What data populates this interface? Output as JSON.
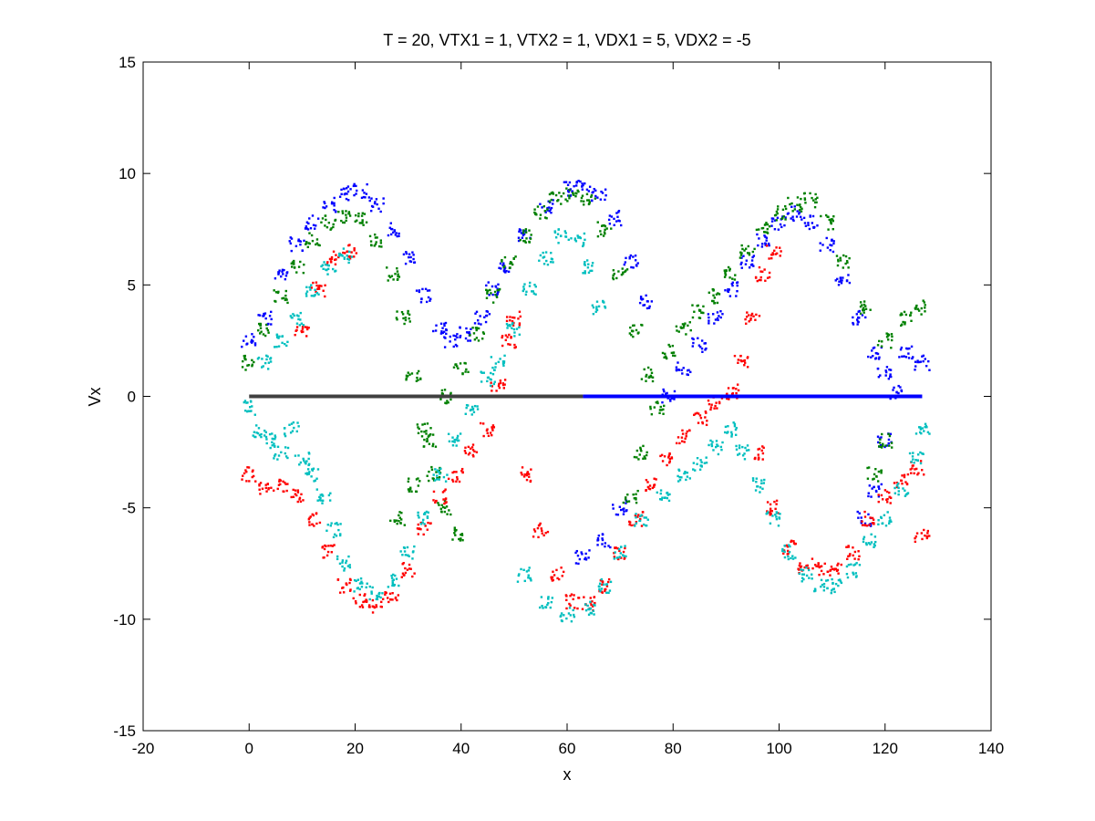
{
  "chart_data": {
    "type": "scatter",
    "title": "T = 20, VTX1 = 1, VTX2 = 1, VDX1 = 5, VDX2 = -5",
    "xlabel": "x",
    "ylabel": "Vx",
    "xlim": [
      -20,
      140
    ],
    "ylim": [
      -15,
      15
    ],
    "x_ticks": [
      "-20",
      "0",
      "20",
      "40",
      "60",
      "80",
      "100",
      "120",
      "140"
    ],
    "y_ticks": [
      "15",
      "10",
      "5",
      "0",
      "-5",
      "-10",
      "-15"
    ],
    "grid": false,
    "legend": "none",
    "series": [
      {
        "color": "#0000ff",
        "points": [
          [
            0,
            2.5
          ],
          [
            3,
            3.5
          ],
          [
            6,
            5.5
          ],
          [
            9,
            6.8
          ],
          [
            12,
            7.8
          ],
          [
            15,
            8.6
          ],
          [
            18,
            9.1
          ],
          [
            21,
            9.2
          ],
          [
            24,
            8.6
          ],
          [
            27,
            7.5
          ],
          [
            30,
            6.2
          ],
          [
            33,
            4.5
          ],
          [
            36,
            3.0
          ],
          [
            38,
            2.5
          ],
          [
            41,
            2.8
          ],
          [
            44,
            3.5
          ],
          [
            46,
            4.8
          ],
          [
            48,
            5.8
          ],
          [
            52,
            7.2
          ],
          [
            56,
            8.5
          ],
          [
            60,
            9.3
          ],
          [
            63,
            9.5
          ],
          [
            66,
            9.0
          ],
          [
            69,
            8.0
          ],
          [
            72,
            6.0
          ],
          [
            75,
            4.2
          ],
          [
            70,
            -5.0
          ],
          [
            67,
            -6.5
          ],
          [
            63,
            -7.2
          ],
          [
            79,
            0.0
          ],
          [
            82,
            1.2
          ],
          [
            85,
            2.3
          ],
          [
            88,
            3.5
          ],
          [
            91,
            4.8
          ],
          [
            94,
            6.0
          ],
          [
            97,
            7.0
          ],
          [
            100,
            7.8
          ],
          [
            103,
            8.2
          ],
          [
            106,
            7.8
          ],
          [
            109,
            6.8
          ],
          [
            112,
            5.2
          ],
          [
            115,
            3.5
          ],
          [
            118,
            2.0
          ],
          [
            120,
            1.0
          ],
          [
            122,
            0.2
          ],
          [
            124,
            2.0
          ],
          [
            127,
            1.5
          ],
          [
            120,
            -2.0
          ],
          [
            118,
            -4.2
          ],
          [
            116,
            -5.5
          ]
        ]
      },
      {
        "color": "#008000",
        "points": [
          [
            0,
            1.5
          ],
          [
            3,
            3.0
          ],
          [
            6,
            4.5
          ],
          [
            9,
            5.8
          ],
          [
            12,
            7.0
          ],
          [
            15,
            7.8
          ],
          [
            18,
            8.1
          ],
          [
            21,
            8.0
          ],
          [
            24,
            7.0
          ],
          [
            27,
            5.5
          ],
          [
            29,
            3.5
          ],
          [
            31,
            1.0
          ],
          [
            33,
            -1.5
          ],
          [
            35,
            -3.5
          ],
          [
            37,
            -5.0
          ],
          [
            39,
            -6.2
          ],
          [
            28,
            -5.5
          ],
          [
            31,
            -4.0
          ],
          [
            34,
            -2.0
          ],
          [
            37,
            0.0
          ],
          [
            40,
            1.2
          ],
          [
            43,
            2.8
          ],
          [
            46,
            4.5
          ],
          [
            49,
            6.0
          ],
          [
            52,
            7.2
          ],
          [
            55,
            8.3
          ],
          [
            58,
            8.9
          ],
          [
            61,
            9.0
          ],
          [
            64,
            8.8
          ],
          [
            67,
            7.5
          ],
          [
            70,
            5.5
          ],
          [
            73,
            3.0
          ],
          [
            75,
            1.0
          ],
          [
            77,
            -0.5
          ],
          [
            74,
            -2.5
          ],
          [
            72,
            -4.5
          ],
          [
            79,
            2.0
          ],
          [
            82,
            3.0
          ],
          [
            85,
            3.8
          ],
          [
            88,
            4.5
          ],
          [
            91,
            5.5
          ],
          [
            94,
            6.5
          ],
          [
            97,
            7.5
          ],
          [
            100,
            8.2
          ],
          [
            103,
            8.6
          ],
          [
            106,
            8.8
          ],
          [
            109,
            7.8
          ],
          [
            112,
            6.0
          ],
          [
            116,
            4.0
          ],
          [
            120,
            2.5
          ],
          [
            124,
            3.5
          ],
          [
            127,
            4.0
          ],
          [
            118,
            -3.5
          ],
          [
            120,
            -2.0
          ]
        ]
      },
      {
        "color": "#ff0000",
        "points": [
          [
            0,
            -3.5
          ],
          [
            3,
            -4.2
          ],
          [
            6,
            -4.0
          ],
          [
            9,
            -4.5
          ],
          [
            12,
            -5.5
          ],
          [
            15,
            -7.0
          ],
          [
            18,
            -8.5
          ],
          [
            21,
            -9.2
          ],
          [
            24,
            -9.4
          ],
          [
            27,
            -9.0
          ],
          [
            30,
            -7.8
          ],
          [
            33,
            -6.0
          ],
          [
            36,
            -4.5
          ],
          [
            39,
            -3.5
          ],
          [
            42,
            -2.5
          ],
          [
            45,
            -1.5
          ],
          [
            47,
            0.5
          ],
          [
            49,
            2.5
          ],
          [
            50,
            3.5
          ],
          [
            52,
            -3.5
          ],
          [
            55,
            -6.0
          ],
          [
            58,
            -8.0
          ],
          [
            61,
            -9.2
          ],
          [
            64,
            -9.3
          ],
          [
            67,
            -8.5
          ],
          [
            70,
            -7.0
          ],
          [
            73,
            -5.5
          ],
          [
            76,
            -4.0
          ],
          [
            79,
            -2.8
          ],
          [
            82,
            -1.8
          ],
          [
            85,
            -1.0
          ],
          [
            88,
            -0.3
          ],
          [
            91,
            0.2
          ],
          [
            93,
            1.5
          ],
          [
            95,
            3.5
          ],
          [
            97,
            5.5
          ],
          [
            99,
            6.5
          ],
          [
            96,
            -2.5
          ],
          [
            99,
            -5.0
          ],
          [
            102,
            -6.8
          ],
          [
            105,
            -7.6
          ],
          [
            108,
            -7.8
          ],
          [
            111,
            -7.8
          ],
          [
            114,
            -7.0
          ],
          [
            117,
            -5.5
          ],
          [
            120,
            -4.5
          ],
          [
            123,
            -3.8
          ],
          [
            126,
            -3.2
          ],
          [
            127,
            -6.2
          ],
          [
            10,
            3.0
          ],
          [
            13,
            4.8
          ],
          [
            16,
            6.2
          ],
          [
            19,
            6.5
          ]
        ]
      },
      {
        "color": "#00bfbf",
        "points": [
          [
            0,
            -0.5
          ],
          [
            2,
            -1.5
          ],
          [
            4,
            -2.0
          ],
          [
            6,
            -2.5
          ],
          [
            8,
            -1.5
          ],
          [
            10,
            -2.8
          ],
          [
            12,
            -3.5
          ],
          [
            14,
            -4.5
          ],
          [
            16,
            -6.0
          ],
          [
            18,
            -7.5
          ],
          [
            21,
            -8.5
          ],
          [
            24,
            -8.8
          ],
          [
            27,
            -8.3
          ],
          [
            30,
            -7.0
          ],
          [
            33,
            -5.5
          ],
          [
            36,
            -3.5
          ],
          [
            39,
            -2.0
          ],
          [
            42,
            -0.5
          ],
          [
            45,
            0.8
          ],
          [
            47,
            1.5
          ],
          [
            50,
            3.0
          ],
          [
            53,
            4.8
          ],
          [
            56,
            6.2
          ],
          [
            59,
            7.2
          ],
          [
            62,
            7.0
          ],
          [
            64,
            5.8
          ],
          [
            66,
            4.0
          ],
          [
            52,
            -8.0
          ],
          [
            56,
            -9.2
          ],
          [
            60,
            -9.8
          ],
          [
            64,
            -9.5
          ],
          [
            67,
            -8.5
          ],
          [
            70,
            -7.0
          ],
          [
            74,
            -5.5
          ],
          [
            78,
            -4.5
          ],
          [
            82,
            -3.5
          ],
          [
            85,
            -3.0
          ],
          [
            88,
            -2.3
          ],
          [
            91,
            -1.5
          ],
          [
            93,
            -2.5
          ],
          [
            96,
            -4.0
          ],
          [
            99,
            -5.5
          ],
          [
            102,
            -7.0
          ],
          [
            105,
            -8.0
          ],
          [
            108,
            -8.5
          ],
          [
            111,
            -8.5
          ],
          [
            114,
            -7.8
          ],
          [
            117,
            -6.5
          ],
          [
            120,
            -5.5
          ],
          [
            123,
            -4.2
          ],
          [
            126,
            -2.8
          ],
          [
            127,
            -1.5
          ],
          [
            3,
            1.5
          ],
          [
            6,
            2.5
          ],
          [
            9,
            3.5
          ],
          [
            12,
            4.8
          ],
          [
            15,
            5.8
          ],
          [
            18,
            6.3
          ]
        ]
      },
      {
        "color": "#404040",
        "line": "zero",
        "points": [
          [
            0,
            0
          ],
          [
            63,
            0
          ]
        ]
      },
      {
        "color": "#0000ff",
        "line": "zero",
        "points": [
          [
            63,
            0
          ],
          [
            127,
            0
          ]
        ]
      }
    ]
  }
}
